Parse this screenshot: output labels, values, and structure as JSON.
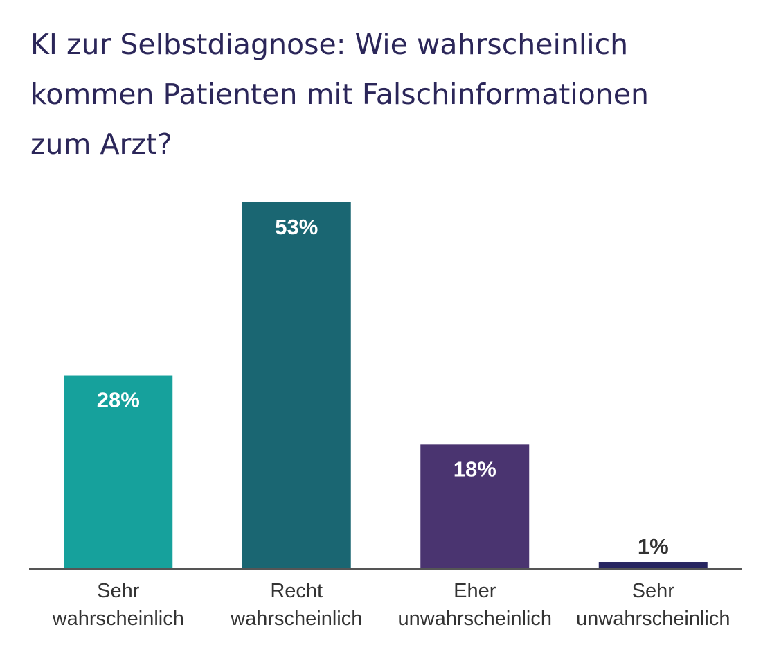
{
  "chart_data": {
    "type": "bar",
    "title_lines": [
      "KI zur Selbstdiagnose: Wie wahrscheinlich",
      "kommen Patienten mit Falschinformationen",
      "zum Arzt?"
    ],
    "categories": [
      [
        "Sehr",
        "wahrscheinlich"
      ],
      [
        "Recht",
        "wahrscheinlich"
      ],
      [
        "Eher",
        "unwahrscheinlich"
      ],
      [
        "Sehr",
        "unwahrscheinlich"
      ]
    ],
    "values": [
      28,
      53,
      18,
      1
    ],
    "value_labels": [
      "28%",
      "53%",
      "18%",
      "1%"
    ],
    "colors": [
      "#16a19c",
      "#1a6672",
      "#4a3470",
      "#272560"
    ],
    "label_colors": [
      "#ffffff",
      "#ffffff",
      "#ffffff",
      "#333333"
    ],
    "axis_color": "#555555",
    "title_color": "#2b2659",
    "ylim": [
      0,
      53
    ],
    "xlabel": "",
    "ylabel": "",
    "grid": false,
    "legend": "none"
  }
}
